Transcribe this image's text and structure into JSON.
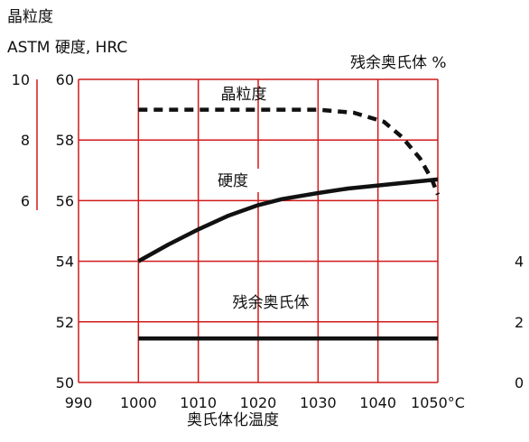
{
  "chart_data": {
    "type": "line",
    "title_lines": [
      "晶粒度",
      "ASTM  硬度, HRC"
    ],
    "right_axis_title": "残余奥氏体 %",
    "xlabel": "奥氏体化温度",
    "x_ticks": [
      990,
      1000,
      1010,
      1020,
      1030,
      1040,
      1050
    ],
    "x_tick_labels": [
      "990",
      "1000",
      "1010",
      "1020",
      "1030",
      "1040",
      "1050°C"
    ],
    "xlim": [
      990,
      1050
    ],
    "hrc_ticks": [
      50,
      52,
      54,
      56,
      58,
      60
    ],
    "ylim": [
      50,
      60
    ],
    "grain_ticks": [
      {
        "label": "10",
        "hrc": 60
      },
      {
        "label": "8",
        "hrc": 58
      },
      {
        "label": "6",
        "hrc": 56
      }
    ],
    "austenite_ticks": [
      {
        "label": "4",
        "hrc": 54
      },
      {
        "label": "2",
        "hrc": 52
      },
      {
        "label": "0",
        "hrc": 50
      }
    ],
    "grid": true,
    "series": [
      {
        "name": "晶粒度",
        "style": "dashed",
        "x": [
          1000,
          1010,
          1020,
          1030,
          1036,
          1041,
          1044,
          1047,
          1049,
          1050
        ],
        "y": [
          59.0,
          59.0,
          59.0,
          59.0,
          58.9,
          58.6,
          58.1,
          57.4,
          56.7,
          56.2
        ]
      },
      {
        "name": "硬度",
        "style": "solid",
        "x": [
          1000,
          1005,
          1010,
          1015,
          1020,
          1024,
          1030,
          1035,
          1040,
          1045,
          1050
        ],
        "y": [
          54.0,
          54.55,
          55.05,
          55.5,
          55.85,
          56.05,
          56.25,
          56.4,
          56.5,
          56.6,
          56.7
        ]
      },
      {
        "name": "残余奥氏体",
        "style": "solid",
        "x": [
          1000,
          1050
        ],
        "y": [
          51.45,
          51.45
        ]
      }
    ],
    "colors": {
      "grid": "#d11a1a",
      "line": "#111111"
    }
  }
}
